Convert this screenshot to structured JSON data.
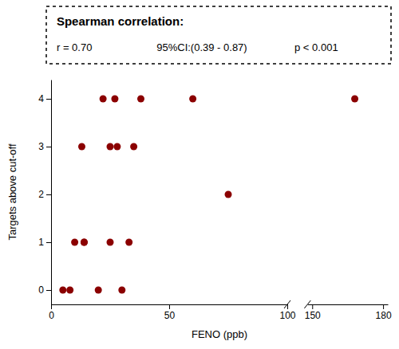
{
  "chart_data": {
    "type": "scatter",
    "title": "Spearman correlation:",
    "annotations": [
      "r = 0.70",
      "95%CI:(0.39 - 0.87)",
      "p < 0.001"
    ],
    "x_label": "FENO (ppb)",
    "y_label": "Targets above cut-off",
    "x": [
      5,
      8,
      10,
      13,
      14,
      14,
      20,
      22,
      25,
      25,
      27,
      28,
      30,
      33,
      35,
      38,
      60,
      75,
      168
    ],
    "values": [
      0,
      0,
      1,
      3,
      1,
      1,
      0,
      4,
      3,
      1,
      4,
      3,
      0,
      1,
      3,
      4,
      4,
      2,
      4
    ],
    "color": "#8B0000",
    "xlim": [
      [
        0,
        100
      ],
      [
        148,
        182
      ]
    ],
    "xticks": [
      [
        0,
        50,
        100
      ],
      [
        150,
        180
      ]
    ],
    "ylim": [
      -0.3,
      4.4
    ],
    "yticks": [
      0,
      1,
      2,
      3,
      4
    ]
  }
}
